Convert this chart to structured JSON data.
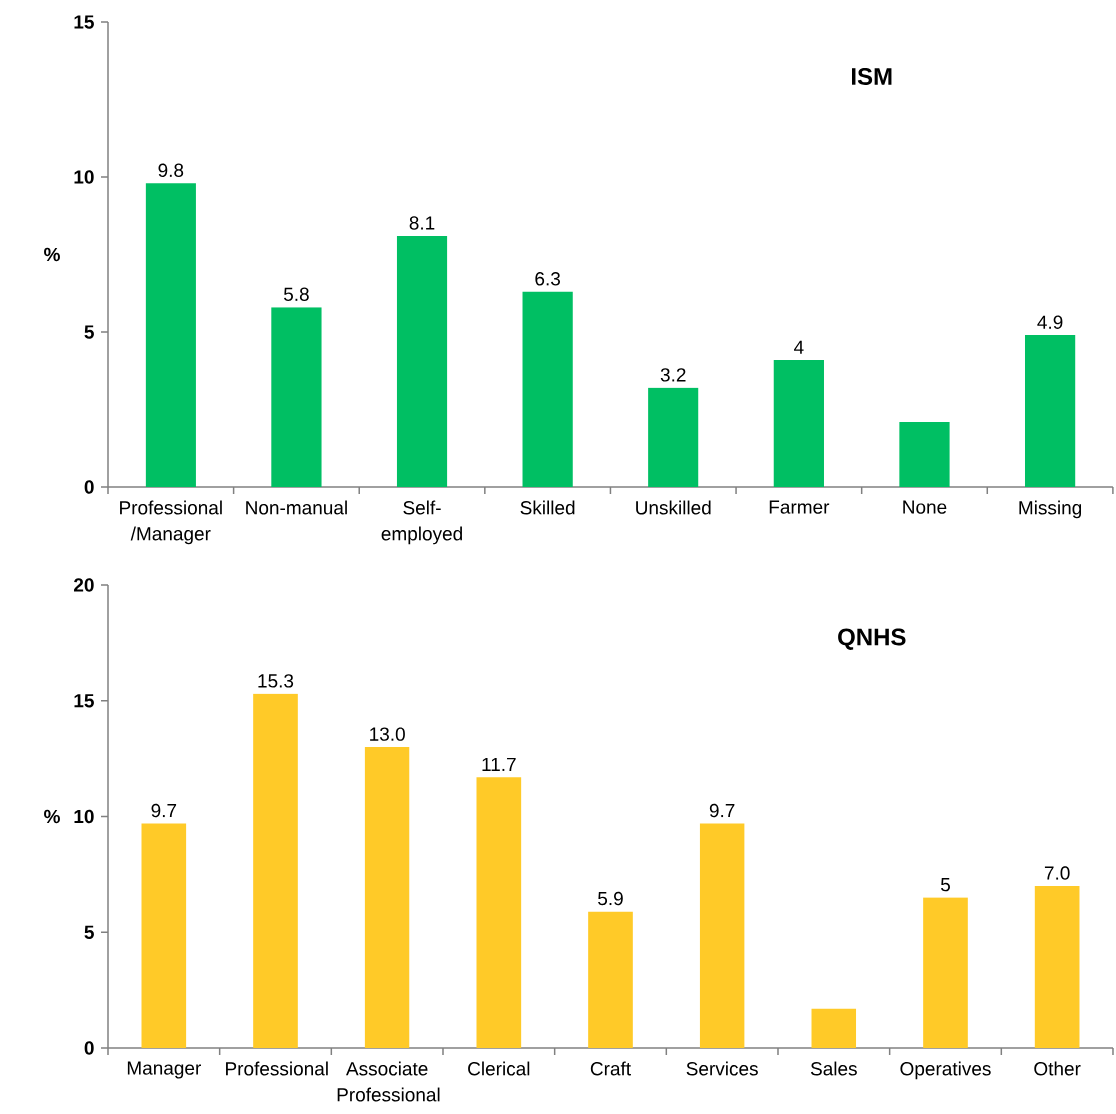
{
  "chart_data": [
    {
      "type": "bar",
      "title": "ISM",
      "ylabel": "%",
      "categories": [
        "Professional /Manager",
        "Non-manual",
        "Self-employed",
        "Skilled",
        "Unskilled",
        "Farmer",
        "None",
        "Missing"
      ],
      "values": [
        9.8,
        5.8,
        8.1,
        6.3,
        3.2,
        4.1,
        2.1,
        4.9
      ],
      "value_labels": [
        "9.8",
        "5.8",
        "8.1",
        "6.3",
        "3.2",
        "4",
        null,
        "4.9"
      ],
      "color": "#00bf63",
      "ylim": [
        0,
        15
      ],
      "yticks": [
        0,
        5,
        10,
        15
      ]
    },
    {
      "type": "bar",
      "title": "QNHS",
      "ylabel": "%",
      "categories": [
        "Manager",
        "Professional",
        "Associate Professional",
        "Clerical",
        "Craft",
        "Services",
        "Sales",
        "Operatives",
        "Other"
      ],
      "values": [
        9.7,
        15.3,
        13.0,
        11.7,
        5.9,
        9.7,
        1.7,
        6.5,
        7.0
      ],
      "value_labels": [
        "9.7",
        "15.3",
        "13.0",
        "11.7",
        "5.9",
        "9.7",
        null,
        null,
        "7.0"
      ],
      "annotations": [
        {
          "text": "5",
          "x": "Operatives",
          "y": 6.5
        }
      ],
      "color": "#ffca28",
      "ylim": [
        0,
        20
      ],
      "yticks": [
        0,
        5,
        10,
        15,
        20
      ]
    }
  ]
}
